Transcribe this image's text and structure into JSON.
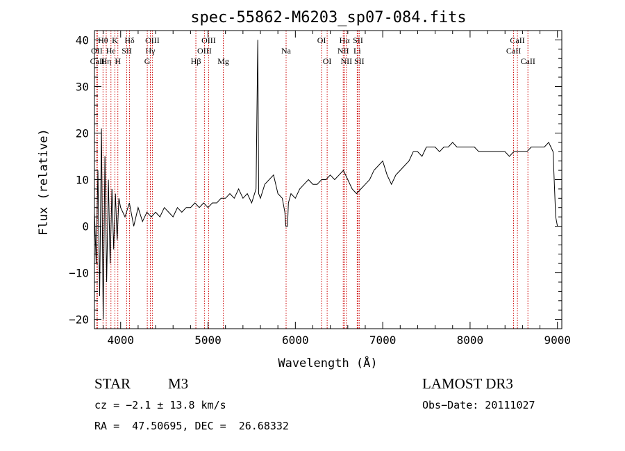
{
  "chart_data": {
    "type": "line",
    "title": "spec-55862-M6203_sp07-084.fits",
    "xlabel": "Wavelength (Å)",
    "ylabel": "Flux (relative)",
    "xlim": [
      3700,
      9050
    ],
    "ylim": [
      -22,
      42
    ],
    "xticks": [
      4000,
      5000,
      6000,
      7000,
      8000,
      9000
    ],
    "yticks": [
      -20,
      -10,
      0,
      10,
      20,
      30,
      40
    ],
    "grid": false,
    "series": [
      {
        "name": "spectrum",
        "color": "#000000",
        "x": [
          3700,
          3720,
          3740,
          3760,
          3780,
          3800,
          3820,
          3840,
          3860,
          3880,
          3900,
          3920,
          3940,
          3960,
          3980,
          4000,
          4050,
          4100,
          4150,
          4200,
          4250,
          4300,
          4350,
          4400,
          4450,
          4500,
          4550,
          4600,
          4650,
          4700,
          4750,
          4800,
          4850,
          4900,
          4950,
          5000,
          5050,
          5100,
          5150,
          5200,
          5250,
          5300,
          5350,
          5400,
          5450,
          5500,
          5550,
          5570,
          5580,
          5600,
          5650,
          5700,
          5750,
          5800,
          5850,
          5880,
          5890,
          5900,
          5910,
          5920,
          5950,
          6000,
          6050,
          6100,
          6150,
          6200,
          6250,
          6300,
          6350,
          6400,
          6450,
          6500,
          6550,
          6600,
          6650,
          6700,
          6750,
          6800,
          6850,
          6900,
          6950,
          7000,
          7050,
          7100,
          7150,
          7200,
          7250,
          7300,
          7350,
          7400,
          7450,
          7500,
          7550,
          7600,
          7650,
          7700,
          7750,
          7800,
          7850,
          7900,
          7950,
          8000,
          8050,
          8100,
          8150,
          8200,
          8250,
          8300,
          8350,
          8400,
          8450,
          8500,
          8550,
          8600,
          8650,
          8700,
          8750,
          8800,
          8850,
          8900,
          8950,
          8980,
          9000,
          9010
        ],
        "y": [
          3,
          -8,
          12,
          -15,
          21,
          -20,
          15,
          -12,
          10,
          -8,
          8,
          -5,
          7,
          -3,
          6,
          4,
          2,
          5,
          0,
          4,
          1,
          3,
          2,
          3,
          2,
          4,
          3,
          2,
          4,
          3,
          4,
          4,
          5,
          4,
          5,
          4,
          5,
          5,
          6,
          6,
          7,
          6,
          8,
          6,
          7,
          5,
          8,
          40,
          7,
          6,
          9,
          10,
          11,
          7,
          6,
          3,
          0,
          0,
          0,
          5,
          7,
          6,
          8,
          9,
          10,
          9,
          9,
          10,
          10,
          11,
          10,
          11,
          12,
          10,
          8,
          7,
          8,
          9,
          10,
          12,
          13,
          14,
          11,
          9,
          11,
          12,
          13,
          14,
          16,
          16,
          15,
          17,
          17,
          17,
          16,
          17,
          17,
          18,
          17,
          17,
          17,
          17,
          17,
          16,
          16,
          16,
          16,
          16,
          16,
          16,
          15,
          16,
          16,
          16,
          16,
          17,
          17,
          17,
          17,
          18,
          16,
          2,
          0,
          0
        ]
      }
    ],
    "lines": [
      {
        "name": "Hθ",
        "x": 3798,
        "row": 1
      },
      {
        "name": "OII",
        "x": 3727,
        "row": 2
      },
      {
        "name": "CaII",
        "x": 3734,
        "row": 3
      },
      {
        "name": "Hη",
        "x": 3835,
        "row": 3
      },
      {
        "name": "He",
        "x": 3889,
        "row": 2
      },
      {
        "name": "K",
        "x": 3934,
        "row": 1
      },
      {
        "name": "H",
        "x": 3968,
        "row": 3
      },
      {
        "name": "SII",
        "x": 4070,
        "row": 2
      },
      {
        "name": "Hδ",
        "x": 4102,
        "row": 1
      },
      {
        "name": "OIII",
        "x": 4363,
        "row": 1
      },
      {
        "name": "Hγ",
        "x": 4340,
        "row": 2
      },
      {
        "name": "G",
        "x": 4305,
        "row": 3
      },
      {
        "name": "Hβ",
        "x": 4861,
        "row": 3
      },
      {
        "name": "OIII",
        "x": 5007,
        "row": 1
      },
      {
        "name": "OIII",
        "x": 4959,
        "row": 2
      },
      {
        "name": "Mg",
        "x": 5175,
        "row": 3
      },
      {
        "name": "Na",
        "x": 5894,
        "row": 2
      },
      {
        "name": "OI",
        "x": 6300,
        "row": 1
      },
      {
        "name": "OI",
        "x": 6364,
        "row": 3
      },
      {
        "name": "Hα",
        "x": 6563,
        "row": 1
      },
      {
        "name": "NII",
        "x": 6548,
        "row": 2
      },
      {
        "name": "NII",
        "x": 6584,
        "row": 3
      },
      {
        "name": "SII",
        "x": 6717,
        "row": 1
      },
      {
        "name": "Li",
        "x": 6708,
        "row": 2
      },
      {
        "name": "SII",
        "x": 6731,
        "row": 3
      },
      {
        "name": "CaII",
        "x": 8542,
        "row": 1
      },
      {
        "name": "CaII",
        "x": 8498,
        "row": 2
      },
      {
        "name": "CaII",
        "x": 8662,
        "row": 3
      }
    ],
    "line_color": "#cc0000"
  },
  "info": {
    "object_class": "STAR",
    "subclass": "M3",
    "survey": "LAMOST DR3",
    "cz": "cz = −2.1 ± 13.8 km/s",
    "obs_date": "Obs−Date: 20111027",
    "coords": "RA =  47.50695, DEC =  26.68332"
  }
}
